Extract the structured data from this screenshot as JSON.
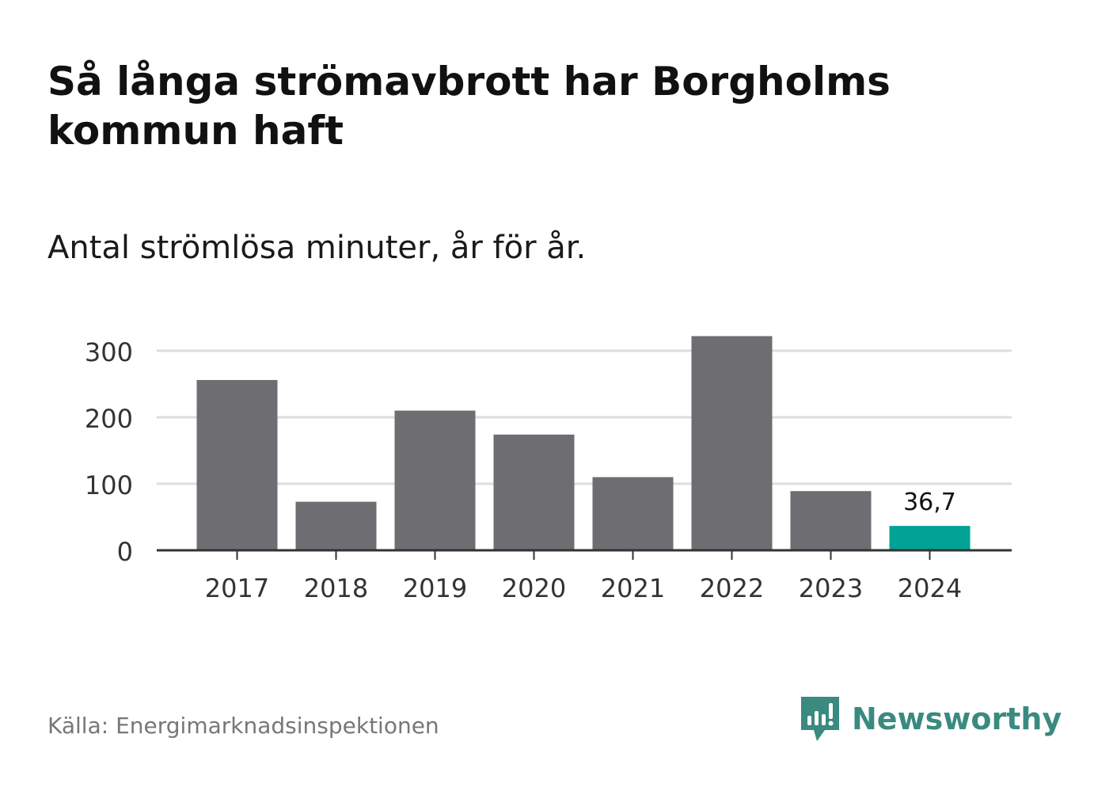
{
  "title": "Så långa strömavbrott har Borgholms kommun haft",
  "subtitle": "Antal strömlösa minuter, år för år.",
  "source": "Källa: Energimarknadsinspektionen",
  "brand": {
    "name": "Newsworthy",
    "icon": "newsworthy-logo-icon",
    "color": "#3a8a80"
  },
  "chart_data": {
    "type": "bar",
    "categories": [
      "2017",
      "2018",
      "2019",
      "2020",
      "2021",
      "2022",
      "2023",
      "2024"
    ],
    "values": [
      256,
      73,
      210,
      174,
      110,
      322,
      89,
      36.7
    ],
    "data_labels": {
      "2024": "36,7"
    },
    "title": "",
    "xlabel": "",
    "ylabel": "",
    "ylim": [
      0,
      300
    ],
    "yticks": [
      0,
      100,
      200,
      300
    ],
    "ytick_labels": [
      "0",
      "100",
      "200",
      "300"
    ],
    "grid": true,
    "colors": {
      "bar": "#6e6d72",
      "highlight": "#00a396",
      "grid": "#dddddd",
      "axis": "#333333"
    },
    "highlight_category": "2024"
  }
}
